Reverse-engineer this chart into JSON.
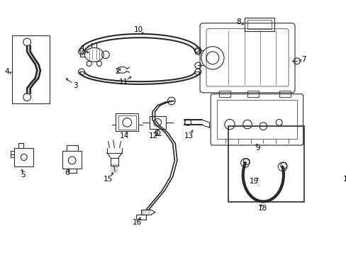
{
  "background_color": "#ffffff",
  "line_color": "#2a2a2a",
  "figsize": [
    4.89,
    3.6
  ],
  "dpi": 100,
  "lw": 0.8
}
